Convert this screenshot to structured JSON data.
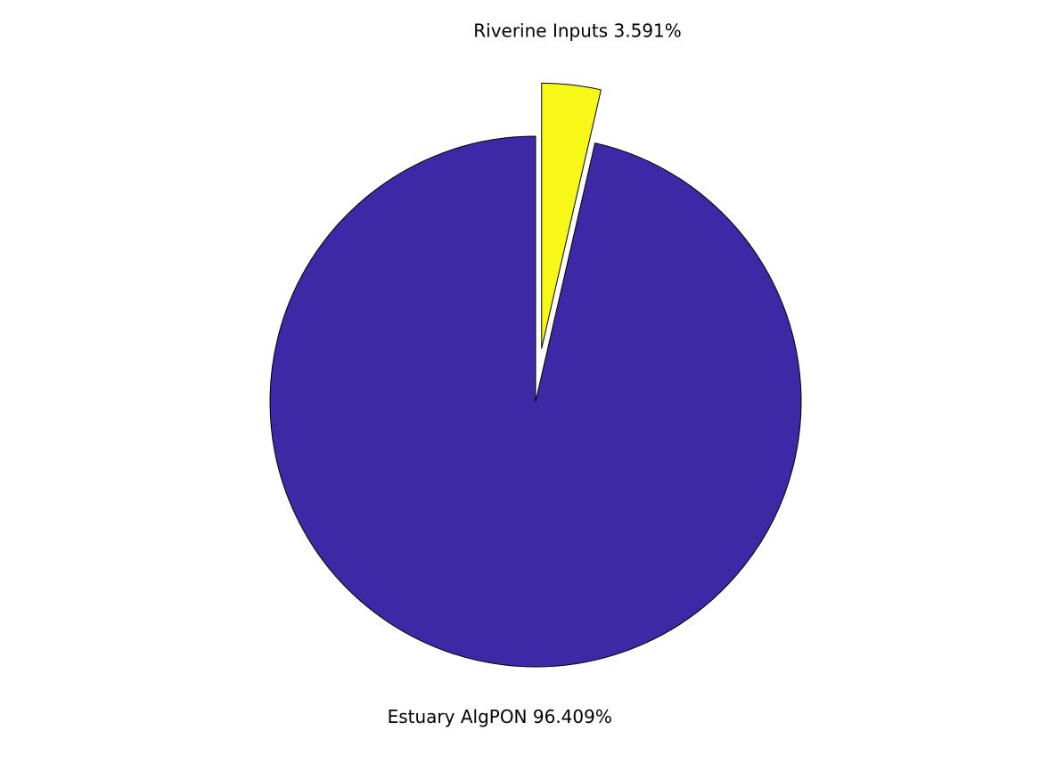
{
  "chart_data": {
    "type": "pie",
    "title": "",
    "exploded": [
      "Riverine Inputs"
    ],
    "slices": [
      {
        "name": "Riverine Inputs",
        "value": 3.591,
        "label": "Riverine Inputs 3.591%",
        "color": "#f8f818"
      },
      {
        "name": "Estuary AlgPON",
        "value": 96.409,
        "label": "Estuary AlgPON 96.409%",
        "color": "#3d28a6"
      }
    ]
  }
}
